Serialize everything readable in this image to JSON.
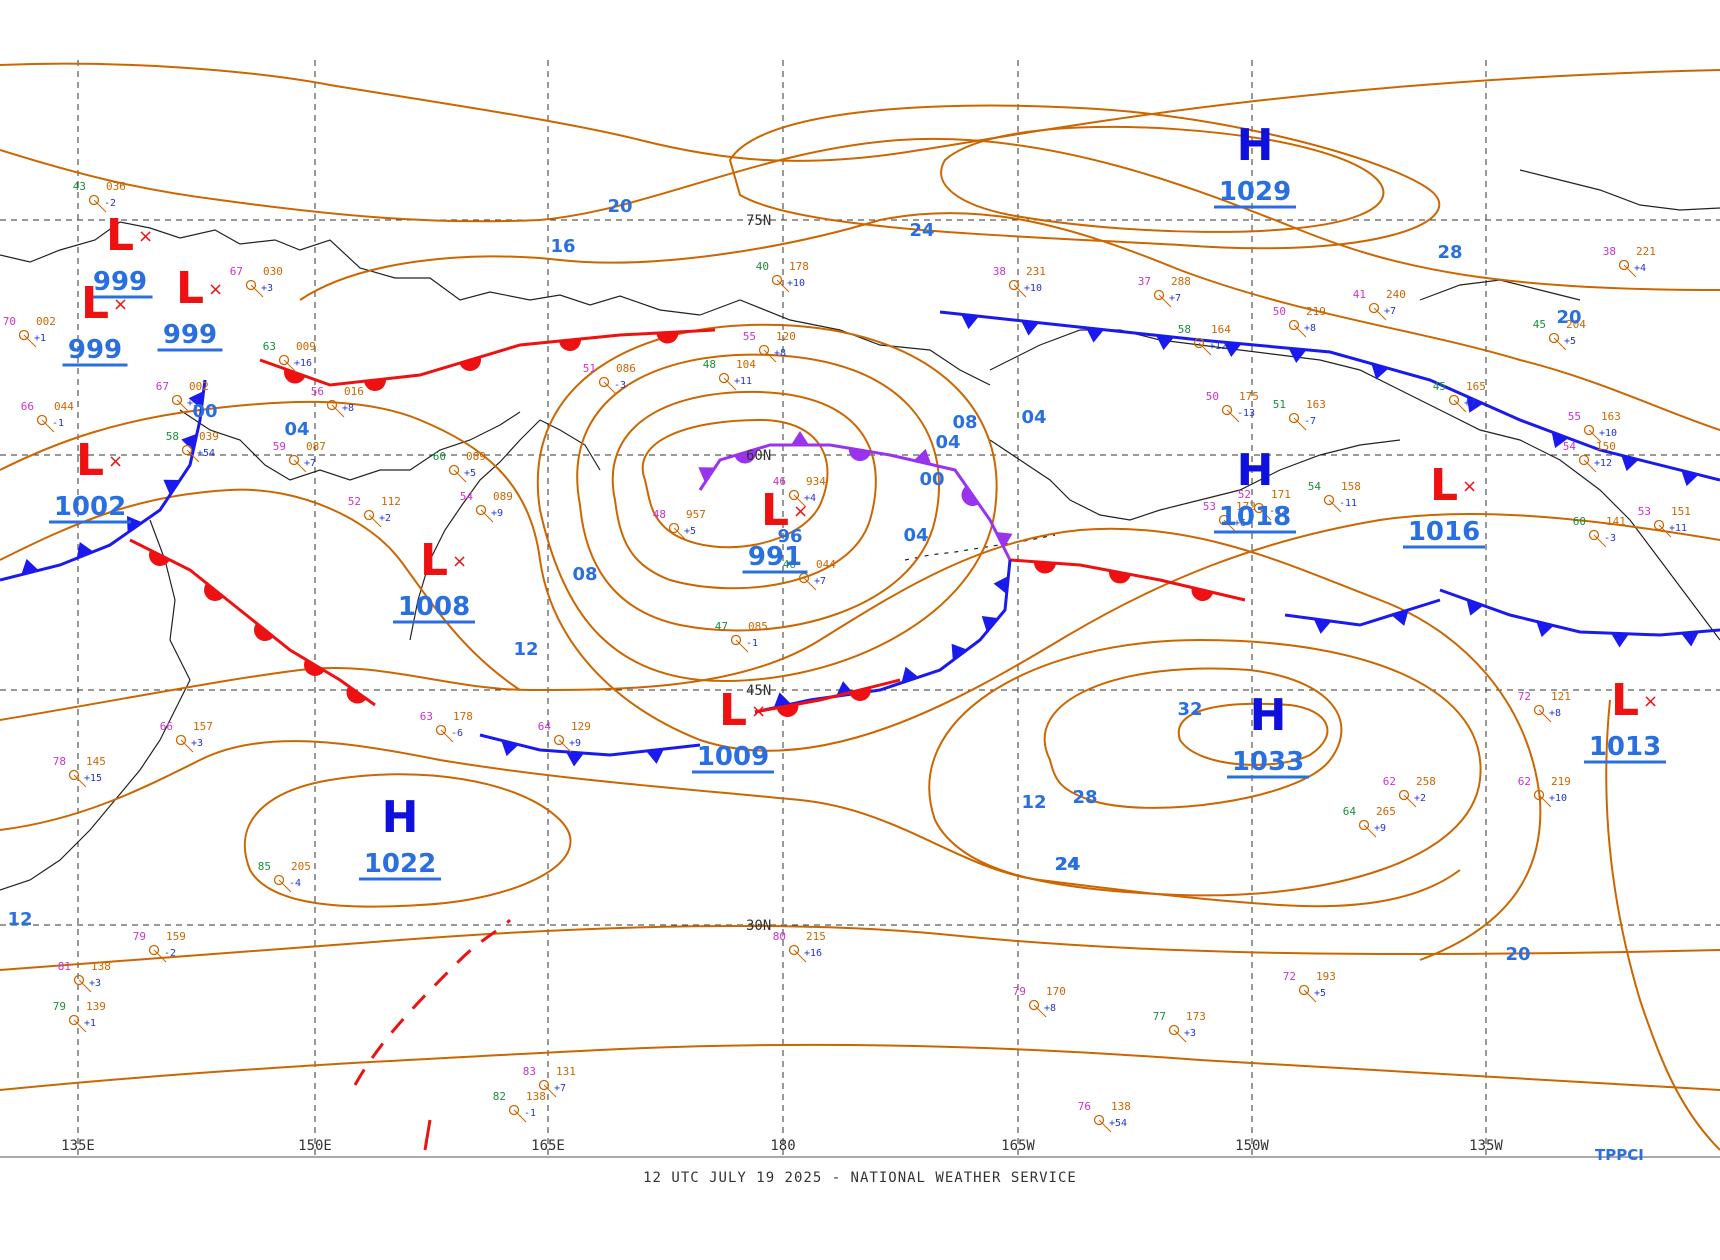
{
  "footer": {
    "caption": "12 UTC JULY 19 2025 - NATIONAL WEATHER SERVICE"
  },
  "colors": {
    "isobar": "#cc6600",
    "isobar_label": "#2a6fe0",
    "low": "#ee1111",
    "high": "#1010dd",
    "cold_front": "#1a1aee",
    "warm_front": "#ee1111",
    "occluded_front": "#9933ee",
    "land": "#222222",
    "grid": "#333333",
    "obs_temp": "#cc33cc",
    "obs_pressure": "#cc6600",
    "obs_tendency": "#2233dd",
    "obs_dew": "#1b8f3a"
  },
  "latitude_labels": [
    "75N",
    "60N",
    "45N",
    "30N"
  ],
  "longitude_labels": [
    "135E",
    "150E",
    "165E",
    "180",
    "165W",
    "150W",
    "135W"
  ],
  "pressure_systems": [
    {
      "type": "L",
      "pressure": "999"
    },
    {
      "type": "L",
      "pressure": "999"
    },
    {
      "type": "L",
      "pressure": "999"
    },
    {
      "type": "L",
      "pressure": "1002"
    },
    {
      "type": "L",
      "pressure": "1008"
    },
    {
      "type": "L",
      "pressure": "991"
    },
    {
      "type": "L",
      "pressure": "1009"
    },
    {
      "type": "L",
      "pressure": "1016"
    },
    {
      "type": "L",
      "pressure": "1013"
    },
    {
      "type": "H",
      "pressure": "1029"
    },
    {
      "type": "H",
      "pressure": "1018"
    },
    {
      "type": "H",
      "pressure": "1033"
    },
    {
      "type": "H",
      "pressure": "1022"
    }
  ],
  "isobar_labels": [
    "20",
    "16",
    "24",
    "28",
    "24",
    "20",
    "00",
    "04",
    "08",
    "04",
    "00",
    "04",
    "12",
    "08",
    "12",
    "96",
    "32",
    "28",
    "24",
    "20",
    "04",
    "12"
  ],
  "station_obs": [
    {
      "t": "43",
      "p": "036"
    },
    {
      "t": "67",
      "p": "030"
    },
    {
      "t": "70",
      "p": "002"
    },
    {
      "t": "63",
      "p": "009"
    },
    {
      "t": "56",
      "p": "016"
    },
    {
      "t": "67",
      "p": "002"
    },
    {
      "t": "58",
      "p": "039"
    },
    {
      "t": "59",
      "p": "087"
    },
    {
      "t": "66",
      "p": "044"
    },
    {
      "t": "60",
      "p": "089"
    },
    {
      "t": "52",
      "p": "112"
    },
    {
      "t": "54",
      "p": "089"
    },
    {
      "t": "40",
      "p": "178"
    },
    {
      "t": "55",
      "p": "120"
    },
    {
      "t": "51",
      "p": "086"
    },
    {
      "t": "48",
      "p": "104"
    },
    {
      "t": "46",
      "p": "934"
    },
    {
      "t": "48",
      "p": "957"
    },
    {
      "t": "46",
      "p": "044"
    },
    {
      "t": "38",
      "p": "231"
    },
    {
      "t": "37",
      "p": "288"
    },
    {
      "t": "58",
      "p": "164"
    },
    {
      "t": "50",
      "p": "219"
    },
    {
      "t": "50",
      "p": "175"
    },
    {
      "t": "51",
      "p": "163"
    },
    {
      "t": "53",
      "p": "172"
    },
    {
      "t": "52",
      "p": "171"
    },
    {
      "t": "54",
      "p": "158"
    },
    {
      "t": "63",
      "p": "178"
    },
    {
      "t": "64",
      "p": "129"
    },
    {
      "t": "47",
      "p": "085"
    },
    {
      "t": "78",
      "p": "145"
    },
    {
      "t": "66",
      "p": "157"
    },
    {
      "t": "85",
      "p": "205"
    },
    {
      "t": "79",
      "p": "159"
    },
    {
      "t": "81",
      "p": "138"
    },
    {
      "t": "79",
      "p": "139"
    },
    {
      "t": "80",
      "p": "215"
    },
    {
      "t": "79",
      "p": "170"
    },
    {
      "t": "77",
      "p": "173"
    },
    {
      "t": "76",
      "p": "138"
    },
    {
      "t": "83",
      "p": "131"
    },
    {
      "t": "82",
      "p": "138"
    },
    {
      "t": "72",
      "p": "193"
    },
    {
      "t": "62",
      "p": "258"
    },
    {
      "t": "64",
      "p": "265"
    },
    {
      "t": "62",
      "p": "219"
    },
    {
      "t": "72",
      "p": "121"
    },
    {
      "t": "60",
      "p": "141"
    },
    {
      "t": "53",
      "p": "151"
    },
    {
      "t": "38",
      "p": "221"
    },
    {
      "t": "45",
      "p": "204"
    },
    {
      "t": "41",
      "p": "240"
    },
    {
      "t": "55",
      "p": "163"
    },
    {
      "t": "45",
      "p": "165"
    },
    {
      "t": "54",
      "p": "150"
    }
  ],
  "tendencies": [
    "-2",
    "+3",
    "+1",
    "+16",
    "+8",
    "+3",
    "+54",
    "+7",
    "-1",
    "+5",
    "+2",
    "+9",
    "+10",
    "+8",
    "-3",
    "+11",
    "+4",
    "+5",
    "+7",
    "+10",
    "+7",
    "+12",
    "+8",
    "-13",
    "-7",
    "+6",
    "-12",
    "-11",
    "-6",
    "+9",
    "-1",
    "+15",
    "+3",
    "-4"
  ],
  "corner_label": "TPPCI"
}
